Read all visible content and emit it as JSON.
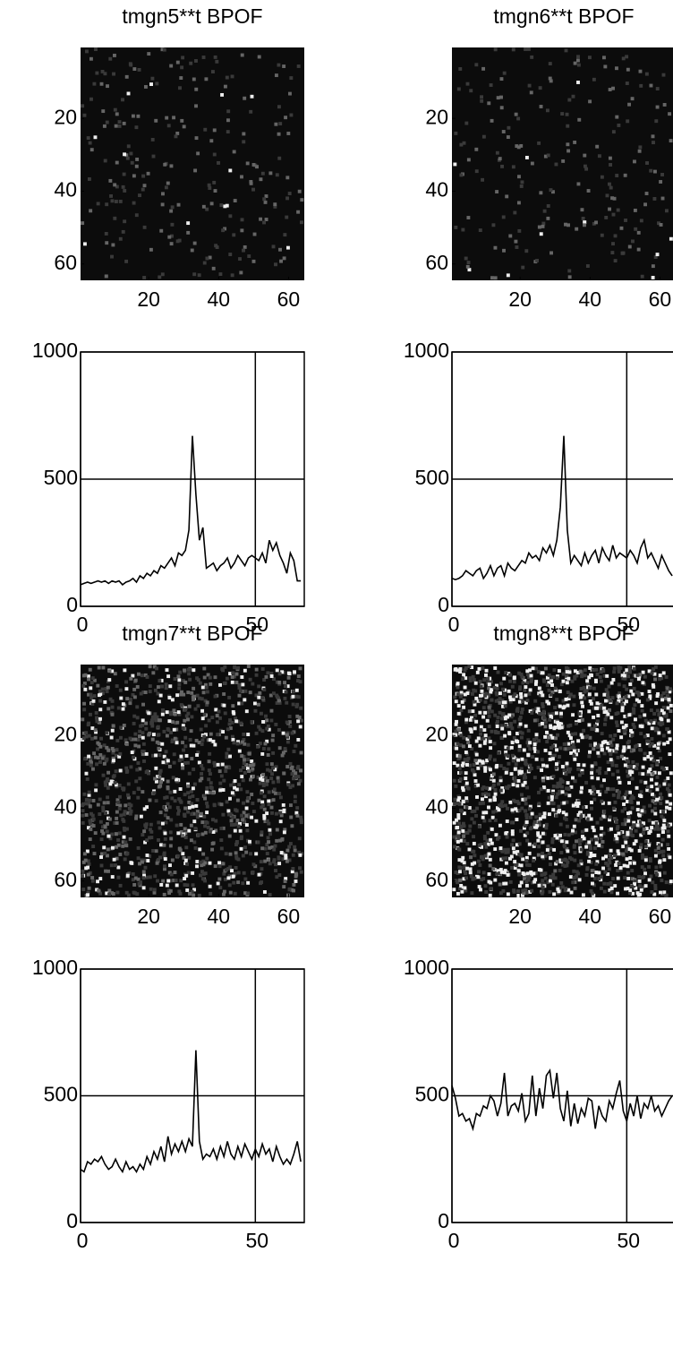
{
  "chart_data": [
    {
      "type": "image",
      "title": "tmgn5**t BPOF",
      "xlim": [
        0.5,
        64.5
      ],
      "ylim": [
        0.5,
        64.5
      ],
      "xticks": [
        20,
        40,
        60
      ],
      "yticks": [
        20,
        40,
        60
      ]
    },
    {
      "type": "line",
      "xlim": [
        0,
        64
      ],
      "ylim": [
        0,
        1000
      ],
      "xticks": [
        0,
        50
      ],
      "yticks": [
        0,
        500,
        1000
      ],
      "grid": true,
      "color": "#000000",
      "values": [
        85,
        90,
        95,
        90,
        95,
        100,
        95,
        100,
        90,
        100,
        95,
        100,
        85,
        95,
        100,
        110,
        95,
        120,
        110,
        130,
        120,
        140,
        130,
        160,
        150,
        170,
        190,
        160,
        210,
        200,
        220,
        300,
        670,
        440,
        260,
        310,
        150,
        160,
        170,
        140,
        160,
        170,
        190,
        150,
        170,
        200,
        180,
        160,
        190,
        200,
        190,
        180,
        210,
        170,
        260,
        220,
        250,
        200,
        170,
        130,
        210,
        180,
        100,
        100
      ]
    },
    {
      "type": "image",
      "title": "tmgn6**t BPOF",
      "xlim": [
        0.5,
        64.5
      ],
      "ylim": [
        0.5,
        64.5
      ],
      "xticks": [
        20,
        40,
        60
      ],
      "yticks": [
        20,
        40,
        60
      ]
    },
    {
      "type": "line",
      "xlim": [
        0,
        64
      ],
      "ylim": [
        0,
        1000
      ],
      "xticks": [
        0,
        50
      ],
      "yticks": [
        0,
        500,
        1000
      ],
      "grid": true,
      "color": "#000000",
      "values": [
        110,
        105,
        110,
        120,
        140,
        130,
        120,
        140,
        150,
        110,
        130,
        160,
        120,
        150,
        160,
        120,
        170,
        150,
        140,
        160,
        180,
        170,
        210,
        190,
        200,
        180,
        230,
        210,
        240,
        200,
        260,
        390,
        670,
        300,
        170,
        200,
        180,
        160,
        210,
        170,
        200,
        220,
        170,
        230,
        200,
        180,
        240,
        190,
        210,
        200,
        190,
        220,
        200,
        170,
        230,
        260,
        190,
        210,
        180,
        150,
        200,
        170,
        140,
        120
      ]
    },
    {
      "type": "image",
      "title": "tmgn7**t BPOF",
      "xlim": [
        0.5,
        64.5
      ],
      "ylim": [
        0.5,
        64.5
      ],
      "xticks": [
        20,
        40,
        60
      ],
      "yticks": [
        20,
        40,
        60
      ]
    },
    {
      "type": "line",
      "xlim": [
        0,
        64
      ],
      "ylim": [
        0,
        1000
      ],
      "xticks": [
        0,
        50
      ],
      "yticks": [
        0,
        500,
        1000
      ],
      "grid": true,
      "color": "#000000",
      "values": [
        210,
        200,
        240,
        230,
        250,
        240,
        260,
        230,
        210,
        220,
        250,
        220,
        200,
        240,
        210,
        220,
        200,
        230,
        210,
        260,
        230,
        280,
        250,
        300,
        240,
        340,
        270,
        310,
        280,
        320,
        280,
        330,
        300,
        680,
        320,
        250,
        270,
        260,
        290,
        250,
        300,
        260,
        320,
        270,
        250,
        300,
        260,
        310,
        280,
        250,
        290,
        260,
        310,
        270,
        290,
        240,
        300,
        260,
        230,
        250,
        230,
        270,
        320,
        240
      ]
    },
    {
      "type": "image",
      "title": "tmgn8**t BPOF",
      "xlim": [
        0.5,
        64.5
      ],
      "ylim": [
        0.5,
        64.5
      ],
      "xticks": [
        20,
        40,
        60
      ],
      "yticks": [
        20,
        40,
        60
      ]
    },
    {
      "type": "line",
      "xlim": [
        0,
        64
      ],
      "ylim": [
        0,
        1000
      ],
      "xticks": [
        0,
        50
      ],
      "yticks": [
        0,
        500,
        1000
      ],
      "grid": true,
      "color": "#000000",
      "values": [
        540,
        490,
        420,
        430,
        400,
        410,
        370,
        430,
        420,
        460,
        450,
        500,
        480,
        420,
        470,
        590,
        420,
        460,
        470,
        440,
        510,
        400,
        430,
        580,
        420,
        530,
        450,
        580,
        600,
        490,
        590,
        450,
        400,
        520,
        380,
        470,
        390,
        450,
        420,
        490,
        480,
        370,
        460,
        420,
        400,
        480,
        450,
        510,
        560,
        440,
        400,
        470,
        420,
        500,
        410,
        470,
        450,
        500,
        440,
        460,
        420,
        450,
        480,
        500
      ]
    }
  ]
}
